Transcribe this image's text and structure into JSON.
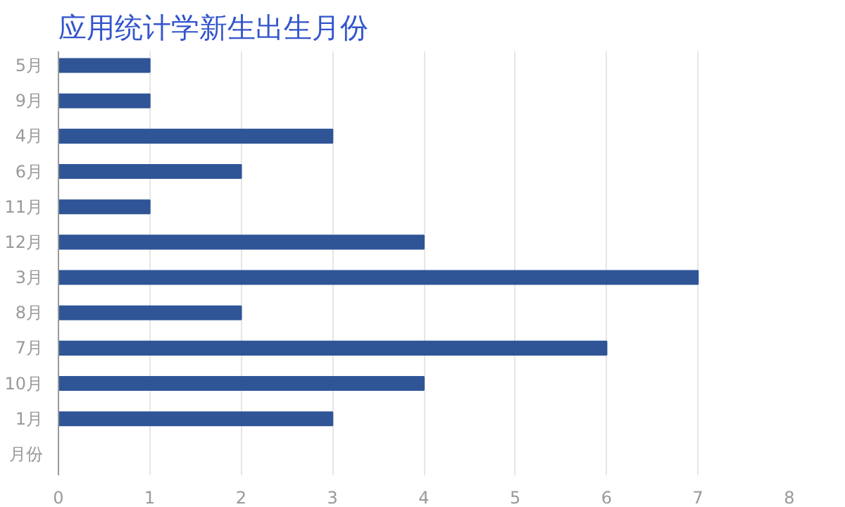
{
  "chart_data": {
    "type": "bar",
    "orientation": "horizontal",
    "title": "应用统计学新生出生月份",
    "categories": [
      "5月",
      "9月",
      "4月",
      "6月",
      "11月",
      "12月",
      "3月",
      "8月",
      "7月",
      "10月",
      "1月",
      "月份"
    ],
    "values": [
      1,
      1,
      3,
      2,
      1,
      4,
      7,
      2,
      6,
      4,
      3,
      null
    ],
    "color": "#2f5597",
    "xlim": [
      0,
      8
    ],
    "xticks": [
      0,
      1,
      2,
      3,
      4,
      5,
      6,
      7,
      8
    ],
    "grid": "x"
  }
}
